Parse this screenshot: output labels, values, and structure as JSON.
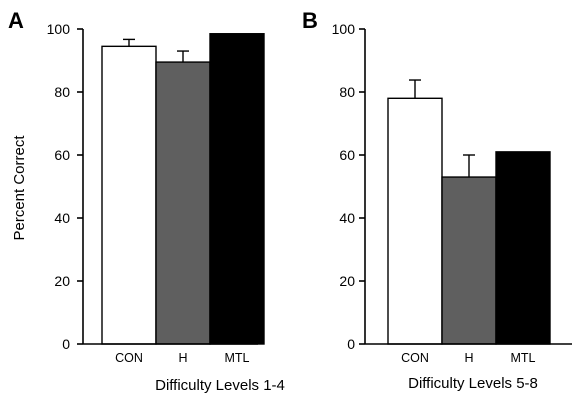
{
  "ylabel": "Percent Correct",
  "chart_data": [
    {
      "type": "bar",
      "panel": "A",
      "categories": [
        "CON",
        "H",
        "MTL"
      ],
      "values": [
        94.5,
        89.5,
        98.5
      ],
      "error_upper": [
        2.2,
        3.5,
        0
      ],
      "colors": [
        "#ffffff",
        "#5f5f5f",
        "#000000"
      ],
      "xlabel": "Difficulty Levels 1-4",
      "ylabel": "Percent Correct",
      "ylim": [
        0,
        100
      ],
      "yticks": [
        0,
        20,
        40,
        60,
        80,
        100
      ],
      "grid": false
    },
    {
      "type": "bar",
      "panel": "B",
      "categories": [
        "CON",
        "H",
        "MTL"
      ],
      "values": [
        78,
        53,
        61
      ],
      "error_upper": [
        5.8,
        7,
        0
      ],
      "colors": [
        "#ffffff",
        "#5f5f5f",
        "#000000"
      ],
      "xlabel": "Difficulty Levels 5-8",
      "ylabel": "",
      "ylim": [
        0,
        100
      ],
      "yticks": [
        0,
        20,
        40,
        60,
        80,
        100
      ],
      "grid": false
    }
  ]
}
